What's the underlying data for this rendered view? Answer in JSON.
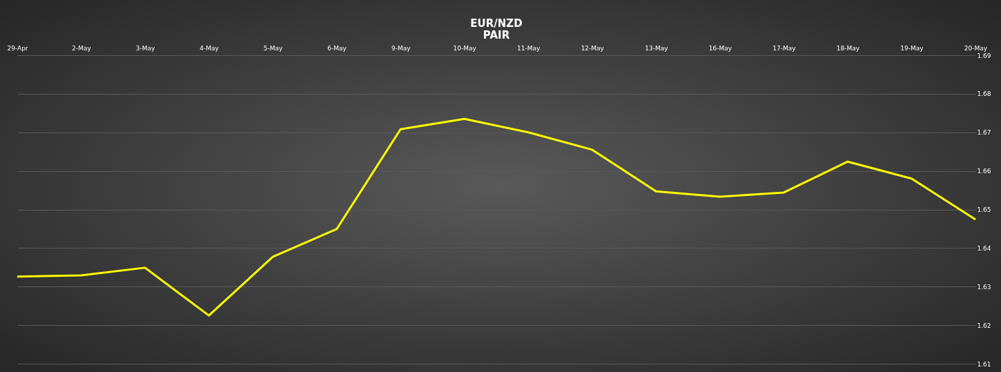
{
  "chart_data": {
    "type": "line",
    "title": "EUR/NZD",
    "subtitle": "PAIR",
    "categories": [
      "29-Apr",
      "2-May",
      "3-May",
      "4-May",
      "5-May",
      "6-May",
      "9-May",
      "10-May",
      "11-May",
      "12-May",
      "13-May",
      "16-May",
      "17-May",
      "18-May",
      "19-May",
      "20-May"
    ],
    "series": [
      {
        "color": "#ffff00",
        "values": [
          1.6326,
          1.6329,
          1.6349,
          1.6225,
          1.6377,
          1.6449,
          1.6708,
          1.6735,
          1.67,
          1.6655,
          1.6547,
          1.6533,
          1.6544,
          1.6624,
          1.658,
          1.6474
        ]
      }
    ],
    "ylim": [
      1.61,
      1.69
    ],
    "yticks": [
      1.61,
      1.62,
      1.63,
      1.64,
      1.65,
      1.66,
      1.67,
      1.68,
      1.69
    ],
    "grid": "y",
    "marker": "none",
    "line_style": "solid"
  }
}
